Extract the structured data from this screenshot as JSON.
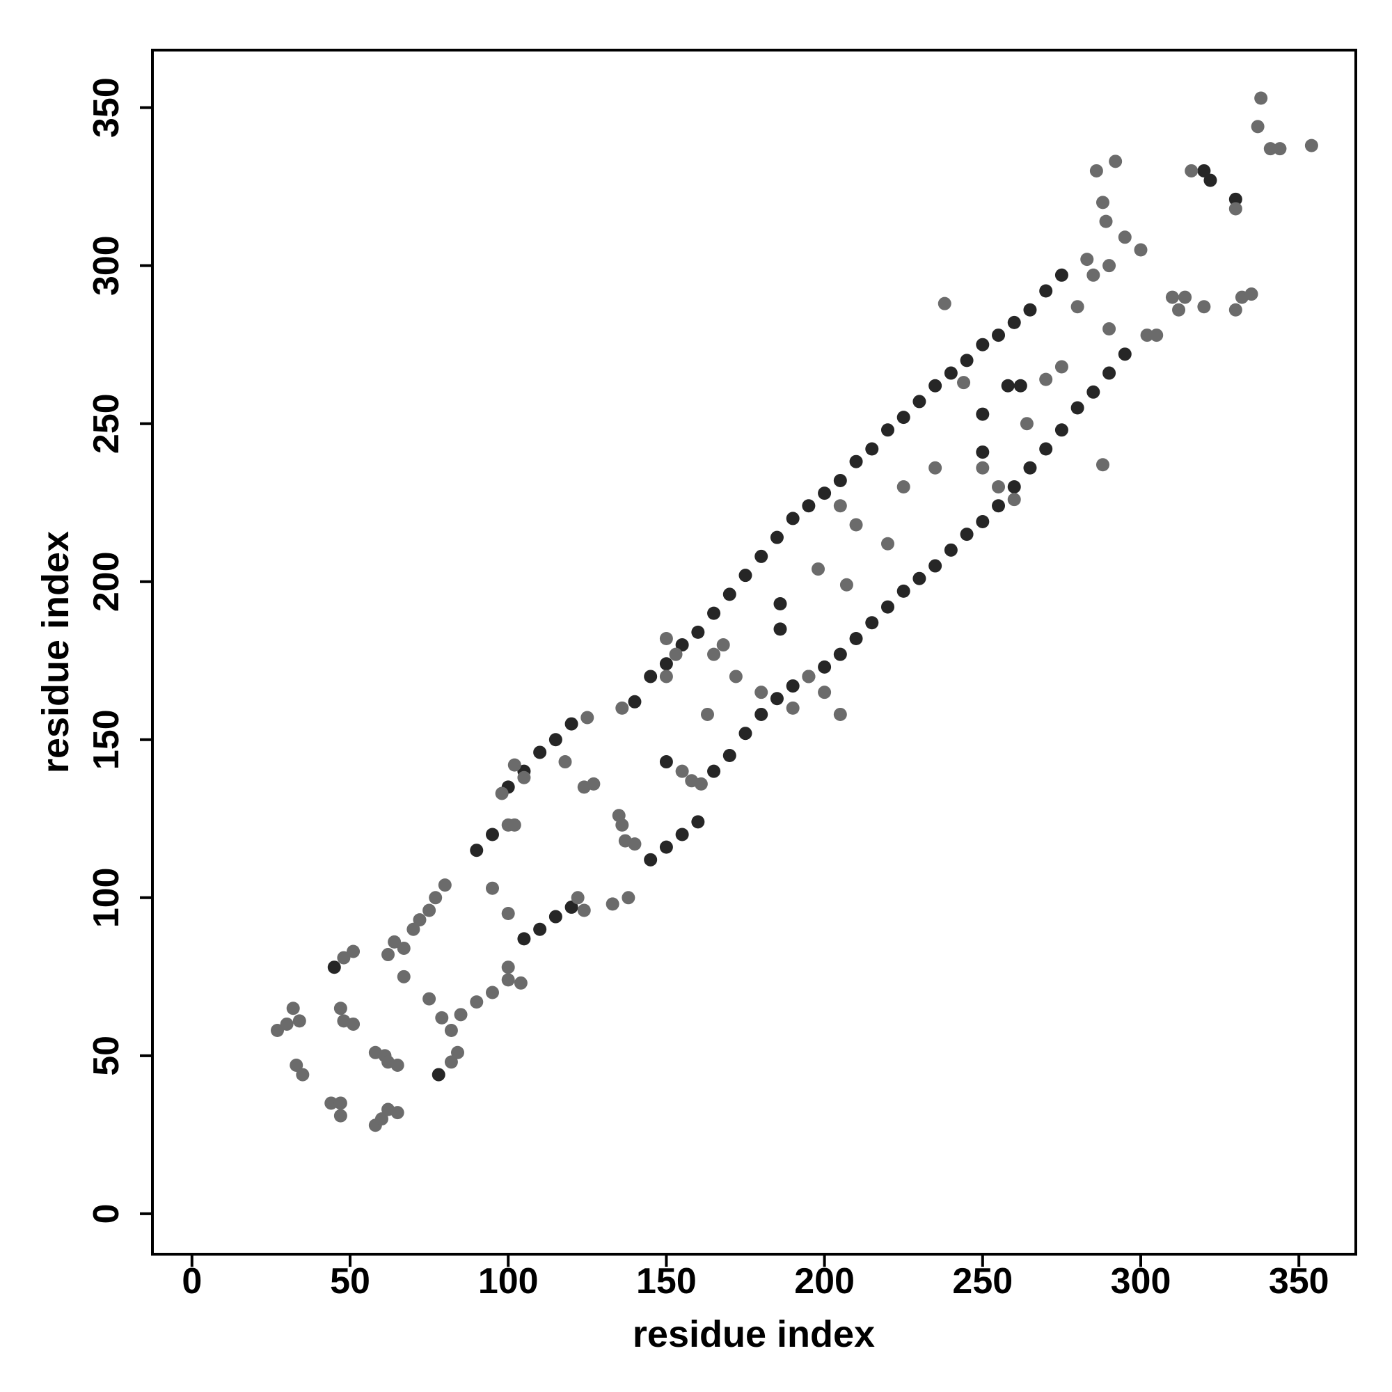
{
  "chart_data": {
    "type": "scatter",
    "x_label": "residue index",
    "y_label": "residue index",
    "xlim": [
      -12.5,
      368
    ],
    "ylim": [
      -12.8,
      368.2
    ],
    "xticks": [
      0,
      50,
      100,
      150,
      200,
      250,
      300,
      350
    ],
    "yticks": [
      0,
      50,
      100,
      150,
      200,
      250,
      300,
      350
    ],
    "grid": false,
    "series": [
      {
        "color": "#262626",
        "x": [
          140,
          145,
          150,
          155,
          160,
          165,
          170,
          175,
          180,
          185,
          190,
          195,
          200,
          205,
          210,
          215,
          220,
          225,
          230,
          235,
          240,
          245,
          250,
          255,
          260,
          265,
          270,
          275,
          90,
          95,
          100,
          105,
          110,
          115,
          120,
          105,
          110,
          115,
          120,
          145,
          150,
          155,
          160,
          165,
          170,
          175,
          180,
          185,
          190,
          195,
          200,
          205,
          210,
          215,
          220,
          225,
          230,
          235,
          240,
          245,
          250,
          255,
          260,
          265,
          270,
          275,
          280,
          285,
          290,
          295,
          250,
          250,
          258,
          186,
          186,
          262,
          45,
          78,
          320,
          322,
          330,
          150
        ],
        "values": [
          162,
          170,
          174,
          180,
          184,
          190,
          196,
          202,
          208,
          214,
          220,
          224,
          228,
          232,
          238,
          242,
          248,
          252,
          257,
          262,
          266,
          270,
          275,
          278,
          282,
          286,
          292,
          297,
          115,
          120,
          135,
          140,
          146,
          150,
          155,
          87,
          90,
          94,
          97,
          112,
          116,
          120,
          124,
          140,
          145,
          152,
          158,
          163,
          167,
          170,
          173,
          177,
          182,
          187,
          192,
          197,
          201,
          205,
          210,
          215,
          219,
          224,
          230,
          236,
          242,
          248,
          255,
          260,
          266,
          272,
          253,
          241,
          262,
          193,
          185,
          262,
          78,
          44,
          330,
          327,
          321,
          143
        ]
      },
      {
        "color": "#6b6b6b",
        "x": [
          27,
          30,
          32,
          34,
          33,
          35,
          44,
          47,
          47,
          47,
          48,
          51,
          48,
          51,
          58,
          60,
          62,
          65,
          58,
          61,
          62,
          65,
          62,
          64,
          67,
          70,
          72,
          75,
          77,
          80,
          67,
          75,
          79,
          82,
          82,
          84,
          85,
          90,
          95,
          100,
          100,
          104,
          95,
          100,
          102,
          100,
          98,
          102,
          105,
          118,
          125,
          124,
          127,
          122,
          124,
          133,
          135,
          136,
          138,
          136,
          137,
          140,
          150,
          150,
          153,
          155,
          158,
          161,
          163,
          165,
          168,
          172,
          180,
          190,
          195,
          200,
          205,
          198,
          207,
          205,
          210,
          220,
          225,
          235,
          238,
          244,
          250,
          255,
          260,
          264,
          270,
          275,
          280,
          283,
          285,
          290,
          288,
          286,
          288,
          289,
          290,
          292,
          295,
          300,
          302,
          305,
          310,
          312,
          320,
          316,
          330,
          332,
          335,
          337,
          338,
          341,
          344,
          354,
          314,
          330
        ],
        "values": [
          58,
          60,
          65,
          61,
          47,
          44,
          35,
          35,
          31,
          65,
          61,
          60,
          81,
          83,
          28,
          30,
          33,
          32,
          51,
          50,
          48,
          47,
          82,
          86,
          84,
          90,
          93,
          96,
          100,
          104,
          75,
          68,
          62,
          58,
          48,
          51,
          63,
          67,
          70,
          74,
          78,
          73,
          103,
          123,
          123,
          95,
          133,
          142,
          138,
          143,
          157,
          135,
          136,
          100,
          96,
          98,
          126,
          123,
          100,
          160,
          118,
          117,
          170,
          182,
          177,
          140,
          137,
          136,
          158,
          177,
          180,
          170,
          165,
          160,
          170,
          165,
          158,
          204,
          199,
          224,
          218,
          212,
          230,
          236,
          288,
          263,
          236,
          230,
          226,
          250,
          264,
          268,
          287,
          302,
          297,
          280,
          237,
          330,
          320,
          314,
          300,
          333,
          309,
          305,
          278,
          278,
          290,
          286,
          287,
          330,
          286,
          290,
          291,
          344,
          353,
          337,
          337,
          338,
          290,
          318
        ]
      }
    ]
  }
}
